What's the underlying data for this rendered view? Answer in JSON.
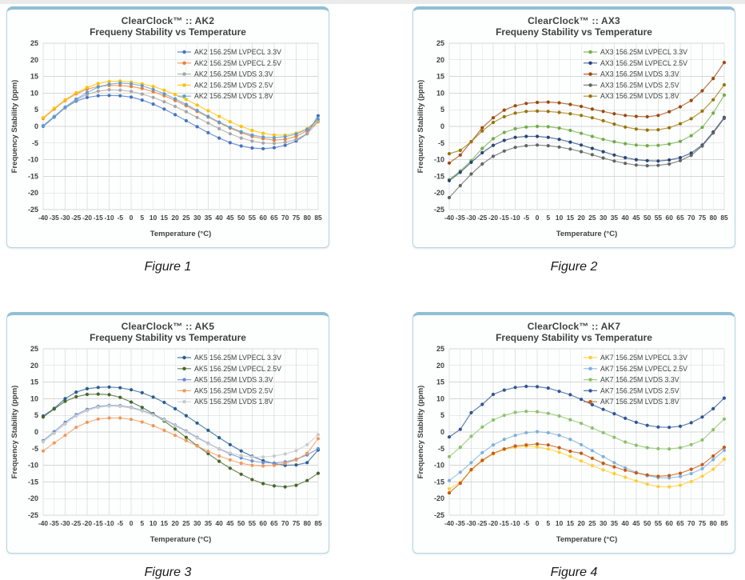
{
  "page": {
    "background": "#ffffff",
    "card_border_color": "#b5d6e2",
    "card_accent_color": "#8fc0d2",
    "title_color": "#404040",
    "grid_color": "#dcdcdc"
  },
  "chart_data": [
    {
      "type": "line",
      "title": "ClearClock™ :: AK2",
      "subtitle": "Frequeny Stability vs Temperature",
      "caption": "Figure 1",
      "xlabel": "Temperature (°C)",
      "ylabel": "Frequency  Stability (ppm)",
      "ylim": [
        -25,
        25
      ],
      "ytick_step": 5,
      "grid": true,
      "legend_position": "top-right",
      "x": [
        -40,
        -35,
        -30,
        -25,
        -20,
        -15,
        -10,
        -5,
        0,
        5,
        10,
        15,
        20,
        25,
        30,
        35,
        40,
        45,
        50,
        55,
        60,
        65,
        70,
        75,
        80,
        85
      ],
      "series": [
        {
          "name": "AK2 156.25M LVPECL 3.3V",
          "color": "#4472C4",
          "values": [
            0.0,
            2.8,
            5.6,
            7.6,
            8.7,
            9.2,
            9.3,
            9.2,
            8.8,
            7.9,
            6.7,
            5.2,
            3.5,
            1.7,
            -0.1,
            -1.9,
            -3.5,
            -4.9,
            -5.9,
            -6.5,
            -6.7,
            -6.4,
            -5.7,
            -4.4,
            -2.2,
            3.2
          ]
        },
        {
          "name": "AK2 156.25M LVPECL 2.5V",
          "color": "#ED7D31",
          "values": [
            2.4,
            5.2,
            7.8,
            9.8,
            11.2,
            12.0,
            12.3,
            12.3,
            12.0,
            11.4,
            10.4,
            9.2,
            7.8,
            6.2,
            4.5,
            2.8,
            1.1,
            -0.5,
            -1.9,
            -3.0,
            -3.7,
            -4.1,
            -3.9,
            -3.0,
            -1.3,
            1.5
          ]
        },
        {
          "name": "AK2 156.25M LVDS 3.3V",
          "color": "#A5A5A5",
          "values": [
            0.3,
            3.0,
            5.7,
            7.9,
            9.6,
            10.6,
            11.0,
            10.9,
            10.5,
            9.7,
            8.7,
            7.4,
            6.0,
            4.4,
            2.7,
            1.0,
            -0.7,
            -2.2,
            -3.5,
            -4.4,
            -5.0,
            -5.1,
            -4.8,
            -3.9,
            -2.2,
            1.4
          ]
        },
        {
          "name": "AK2 156.25M LVDS 2.5V",
          "color": "#FFC000",
          "values": [
            2.6,
            5.4,
            8.0,
            10.1,
            11.7,
            12.9,
            13.5,
            13.6,
            13.3,
            12.8,
            12.0,
            10.9,
            9.6,
            8.1,
            6.4,
            4.7,
            3.0,
            1.4,
            0.0,
            -1.2,
            -2.1,
            -2.6,
            -2.6,
            -2.0,
            -0.7,
            1.9
          ]
        },
        {
          "name": "AK2 156.25M LVDS 1.8V",
          "color": "#5B9BD5",
          "values": [
            0.1,
            2.9,
            5.8,
            8.2,
            10.2,
            11.8,
            12.7,
            13.0,
            12.8,
            12.2,
            11.1,
            9.8,
            8.3,
            6.6,
            4.8,
            3.0,
            1.3,
            -0.3,
            -1.6,
            -2.6,
            -3.2,
            -3.4,
            -3.1,
            -2.3,
            -0.9,
            2.2
          ]
        }
      ]
    },
    {
      "type": "line",
      "title": "ClearClock™ :: AX3",
      "subtitle": "Frequeny Stability vs Temperature",
      "caption": "Figure 2",
      "xlabel": "Temperature (°C)",
      "ylabel": "Frequency  Stability (ppm)",
      "ylim": [
        -25,
        25
      ],
      "ytick_step": 5,
      "grid": true,
      "legend_position": "top-right",
      "x": [
        -40,
        -35,
        -30,
        -25,
        -20,
        -15,
        -10,
        -5,
        0,
        5,
        10,
        15,
        20,
        25,
        30,
        35,
        40,
        45,
        50,
        55,
        60,
        65,
        70,
        75,
        80,
        85
      ],
      "series": [
        {
          "name": "AX3 156.25M LVPECL 3.3V",
          "color": "#70AD47",
          "values": [
            -16.0,
            -13.4,
            -10.3,
            -6.6,
            -3.7,
            -1.8,
            -0.7,
            -0.2,
            0.0,
            -0.1,
            -0.5,
            -1.2,
            -2.1,
            -3.0,
            -3.9,
            -4.6,
            -5.2,
            -5.6,
            -5.8,
            -5.7,
            -5.3,
            -4.5,
            -2.8,
            -0.3,
            4.0,
            9.4
          ]
        },
        {
          "name": "AX3 156.25M LVPECL 2.5V",
          "color": "#264478",
          "values": [
            -16.3,
            -13.8,
            -10.8,
            -7.9,
            -5.7,
            -4.2,
            -3.3,
            -3.0,
            -3.0,
            -3.3,
            -3.9,
            -4.7,
            -5.6,
            -6.6,
            -7.6,
            -8.6,
            -9.4,
            -10.0,
            -10.3,
            -10.4,
            -10.1,
            -9.4,
            -8.0,
            -5.6,
            -1.7,
            2.7
          ]
        },
        {
          "name": "AX3 156.25M LVDS 3.3V",
          "color": "#9E480E",
          "values": [
            -11.0,
            -8.6,
            -4.6,
            -0.4,
            2.6,
            4.9,
            6.2,
            6.9,
            7.2,
            7.3,
            7.1,
            6.6,
            6.0,
            5.2,
            4.5,
            3.8,
            3.3,
            3.0,
            2.9,
            3.3,
            4.4,
            5.9,
            7.8,
            10.7,
            14.4,
            19.2
          ]
        },
        {
          "name": "AX3 156.25M LVDS 2.5V",
          "color": "#636363",
          "values": [
            -21.4,
            -17.8,
            -14.3,
            -11.3,
            -9.0,
            -7.4,
            -6.3,
            -5.8,
            -5.6,
            -5.8,
            -6.2,
            -6.8,
            -7.6,
            -8.5,
            -9.5,
            -10.4,
            -11.1,
            -11.6,
            -11.8,
            -11.7,
            -11.3,
            -10.3,
            -8.7,
            -5.9,
            -2.0,
            2.4
          ]
        },
        {
          "name": "AX3 156.25M LVDS 1.8V",
          "color": "#997300",
          "values": [
            -8.2,
            -7.2,
            -4.6,
            -1.4,
            1.2,
            2.9,
            4.0,
            4.5,
            4.6,
            4.5,
            4.2,
            3.8,
            3.3,
            2.6,
            1.7,
            0.7,
            -0.2,
            -0.8,
            -1.1,
            -1.0,
            -0.4,
            0.8,
            2.3,
            4.6,
            8.0,
            12.5
          ]
        }
      ]
    },
    {
      "type": "line",
      "title": "ClearClock™ :: AK5",
      "subtitle": "Frequeny Stability vs Temperature",
      "caption": "Figure 3",
      "xlabel": "Temperature (°C)",
      "ylabel": "Frequency  Stability (ppm)",
      "ylim": [
        -25,
        25
      ],
      "ytick_step": 5,
      "grid": true,
      "legend_position": "top-right",
      "x": [
        -40,
        -35,
        -30,
        -25,
        -20,
        -15,
        -10,
        -5,
        0,
        5,
        10,
        15,
        20,
        25,
        30,
        35,
        40,
        45,
        50,
        55,
        60,
        65,
        70,
        75,
        80,
        85
      ],
      "series": [
        {
          "name": "AK5 156.25M LVPECL 3.3V",
          "color": "#255E91",
          "values": [
            4.8,
            7.1,
            10.0,
            12.0,
            13.0,
            13.4,
            13.5,
            13.3,
            12.7,
            11.8,
            10.5,
            8.9,
            7.0,
            4.9,
            2.7,
            0.5,
            -1.7,
            -3.8,
            -5.7,
            -7.3,
            -8.6,
            -9.5,
            -10.0,
            -9.9,
            -9.2,
            -5.4
          ]
        },
        {
          "name": "AK5 156.25M LVPECL 2.5V",
          "color": "#43682B",
          "values": [
            4.5,
            6.9,
            9.2,
            10.6,
            11.3,
            11.4,
            11.2,
            10.4,
            9.0,
            7.4,
            5.5,
            3.3,
            0.9,
            -1.6,
            -4.1,
            -6.5,
            -8.8,
            -10.9,
            -12.7,
            -14.3,
            -15.5,
            -16.2,
            -16.5,
            -16.0,
            -14.6,
            -12.4
          ]
        },
        {
          "name": "AK5 156.25M LVDS 3.3V",
          "color": "#698ED0",
          "values": [
            -2.6,
            0.1,
            2.9,
            5.2,
            6.8,
            7.7,
            8.0,
            7.9,
            7.4,
            6.5,
            5.3,
            3.8,
            2.1,
            0.3,
            -1.6,
            -3.4,
            -5.1,
            -6.6,
            -7.8,
            -8.7,
            -9.2,
            -9.3,
            -9.0,
            -8.2,
            -6.9,
            -5.0
          ]
        },
        {
          "name": "AK5 156.25M LVDS 2.5V",
          "color": "#F1975A",
          "values": [
            -5.7,
            -3.3,
            -1.0,
            1.4,
            2.9,
            3.9,
            4.2,
            4.2,
            3.8,
            3.0,
            1.9,
            0.5,
            -1.0,
            -2.6,
            -4.2,
            -5.8,
            -7.2,
            -8.4,
            -9.4,
            -10.0,
            -10.2,
            -10.0,
            -9.4,
            -8.4,
            -6.4,
            -2.0
          ]
        },
        {
          "name": "AK5 156.25M LVDS 1.8V",
          "color": "#C9C9C9",
          "values": [
            -2.9,
            -0.4,
            2.4,
            4.8,
            6.4,
            7.4,
            7.8,
            7.7,
            7.2,
            6.3,
            5.1,
            3.6,
            1.9,
            0.1,
            -1.8,
            -3.5,
            -5.0,
            -6.3,
            -7.1,
            -7.5,
            -7.5,
            -7.2,
            -6.6,
            -5.6,
            -3.8,
            -0.8
          ]
        }
      ]
    },
    {
      "type": "line",
      "title": "ClearClock™ :: AK7",
      "subtitle": "Frequeny Stability vs Temperature",
      "caption": "Figure 4",
      "xlabel": "Temperature (°C)",
      "ylabel": "Frequency  Stability (ppm)",
      "ylim": [
        -25,
        25
      ],
      "ytick_step": 5,
      "grid": true,
      "legend_position": "top-right",
      "x": [
        -40,
        -35,
        -30,
        -25,
        -20,
        -15,
        -10,
        -5,
        0,
        5,
        10,
        15,
        20,
        25,
        30,
        35,
        40,
        45,
        50,
        55,
        60,
        65,
        70,
        75,
        80,
        85
      ],
      "series": [
        {
          "name": "AK7 156.25M LVPECL 3.3V",
          "color": "#FFCD33",
          "values": [
            -17.1,
            -15.1,
            -11.5,
            -8.7,
            -6.6,
            -5.3,
            -4.6,
            -4.3,
            -4.5,
            -5.1,
            -6.1,
            -7.3,
            -8.7,
            -10.1,
            -11.4,
            -12.5,
            -13.6,
            -14.7,
            -15.7,
            -16.4,
            -16.5,
            -16.0,
            -14.9,
            -13.3,
            -11.2,
            -8.2
          ]
        },
        {
          "name": "AK7 156.25M LVPECL 2.5V",
          "color": "#7CAFDD",
          "values": [
            -14.6,
            -12.1,
            -9.2,
            -6.2,
            -3.9,
            -2.2,
            -1.0,
            -0.2,
            0.1,
            -0.2,
            -1.0,
            -2.2,
            -3.8,
            -5.6,
            -7.4,
            -9.2,
            -10.8,
            -12.1,
            -13.1,
            -13.7,
            -13.8,
            -13.4,
            -12.5,
            -11.0,
            -8.3,
            -5.5
          ]
        },
        {
          "name": "AK7 156.25M LVDS 3.3V",
          "color": "#8CC168",
          "values": [
            -7.4,
            -4.6,
            -1.3,
            1.5,
            3.6,
            5.0,
            5.9,
            6.2,
            6.1,
            5.6,
            4.8,
            3.7,
            2.6,
            1.2,
            -0.2,
            -1.6,
            -3.0,
            -4.0,
            -4.7,
            -5.0,
            -5.1,
            -4.7,
            -3.8,
            -2.4,
            0.7,
            3.9
          ]
        },
        {
          "name": "AK7 156.25M LVDS 2.5V",
          "color": "#2F5597",
          "values": [
            -1.5,
            0.8,
            5.8,
            8.3,
            11.3,
            12.6,
            13.4,
            13.7,
            13.6,
            13.2,
            12.2,
            11.2,
            9.8,
            8.2,
            6.8,
            5.5,
            4.1,
            2.9,
            2.0,
            1.5,
            1.4,
            1.7,
            2.8,
            4.5,
            7.0,
            10.2
          ]
        },
        {
          "name": "AK7 156.25M LVDS 1.8V",
          "color": "#C55A11",
          "values": [
            -18.3,
            -15.4,
            -11.3,
            -8.5,
            -6.4,
            -5.1,
            -4.2,
            -3.9,
            -3.6,
            -3.9,
            -4.7,
            -5.8,
            -6.4,
            -7.9,
            -9.4,
            -10.5,
            -11.5,
            -12.3,
            -12.9,
            -13.3,
            -13.1,
            -12.4,
            -11.2,
            -9.8,
            -7.2,
            -4.6
          ]
        }
      ]
    }
  ]
}
